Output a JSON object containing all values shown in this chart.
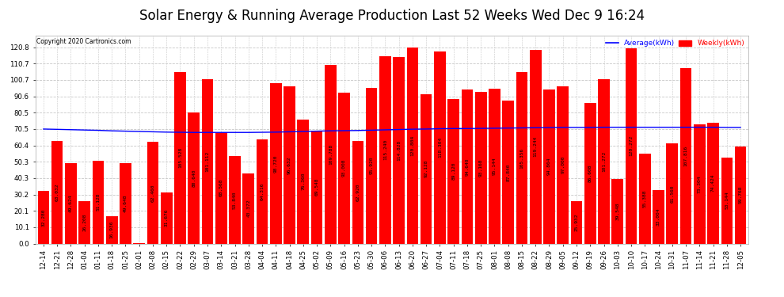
{
  "title": "Solar Energy & Running Average Production Last 52 Weeks Wed Dec 9 16:24",
  "copyright": "Copyright 2020 Cartronics.com",
  "legend_avg": "Average(kWh)",
  "legend_weekly": "Weekly(kWh)",
  "categories": [
    "12-14",
    "12-21",
    "12-28",
    "01-04",
    "01-11",
    "01-18",
    "01-25",
    "02-01",
    "02-08",
    "02-15",
    "02-22",
    "02-29",
    "03-07",
    "03-14",
    "03-21",
    "03-28",
    "04-04",
    "04-11",
    "04-18",
    "04-25",
    "05-02",
    "05-09",
    "05-16",
    "05-23",
    "05-30",
    "06-06",
    "06-13",
    "06-20",
    "06-27",
    "07-04",
    "07-11",
    "07-18",
    "07-25",
    "08-01",
    "08-08",
    "08-15",
    "08-22",
    "08-29",
    "09-05",
    "09-12",
    "09-19",
    "09-26",
    "10-03",
    "10-10",
    "10-17",
    "10-24",
    "10-31",
    "11-07",
    "11-14",
    "11-21",
    "11-28",
    "12-05"
  ],
  "weekly_values": [
    32.28,
    63.032,
    49.624,
    26.208,
    51.128,
    16.936,
    49.648,
    0.096,
    62.46,
    31.676,
    105.528,
    80.64,
    101.112,
    68.568,
    53.84,
    43.372,
    64.316,
    98.72,
    96.632,
    76.36,
    69.548,
    109.788,
    93.008,
    62.92,
    95.92,
    115.24,
    114.828,
    120.804,
    92.128,
    118.304,
    89.12,
    94.64,
    93.168,
    95.144,
    87.84,
    105.356,
    119.244,
    94.864,
    97.0,
    25.932,
    86.608,
    101.272,
    39.548,
    120.272,
    55.388,
    33.004,
    61.56,
    107.816,
    73.304,
    74.424,
    53.144,
    59.768
  ],
  "avg_values": [
    70.5,
    70.3,
    70.1,
    69.9,
    69.7,
    69.4,
    69.2,
    69.0,
    68.8,
    68.6,
    68.5,
    68.4,
    68.4,
    68.4,
    68.4,
    68.4,
    68.5,
    68.6,
    68.8,
    69.0,
    69.2,
    69.4,
    69.5,
    69.6,
    69.8,
    70.0,
    70.2,
    70.4,
    70.5,
    70.7,
    70.8,
    70.8,
    70.9,
    71.0,
    71.1,
    71.2,
    71.3,
    71.4,
    71.5,
    71.5,
    71.5,
    71.6,
    71.6,
    71.6,
    71.6,
    71.6,
    71.6,
    71.6,
    71.6,
    71.6,
    71.5,
    71.5
  ],
  "bar_color": "#ff0000",
  "line_color": "#0000ff",
  "bg_color": "#ffffff",
  "grid_color": "#c8c8c8",
  "title_fontsize": 12,
  "tick_fontsize": 6.2,
  "label_fontsize": 4.5,
  "ylim": [
    0,
    128
  ],
  "yticks": [
    0.0,
    10.1,
    20.1,
    30.2,
    40.3,
    50.3,
    60.4,
    70.5,
    80.5,
    90.6,
    100.7,
    110.7,
    120.8
  ]
}
